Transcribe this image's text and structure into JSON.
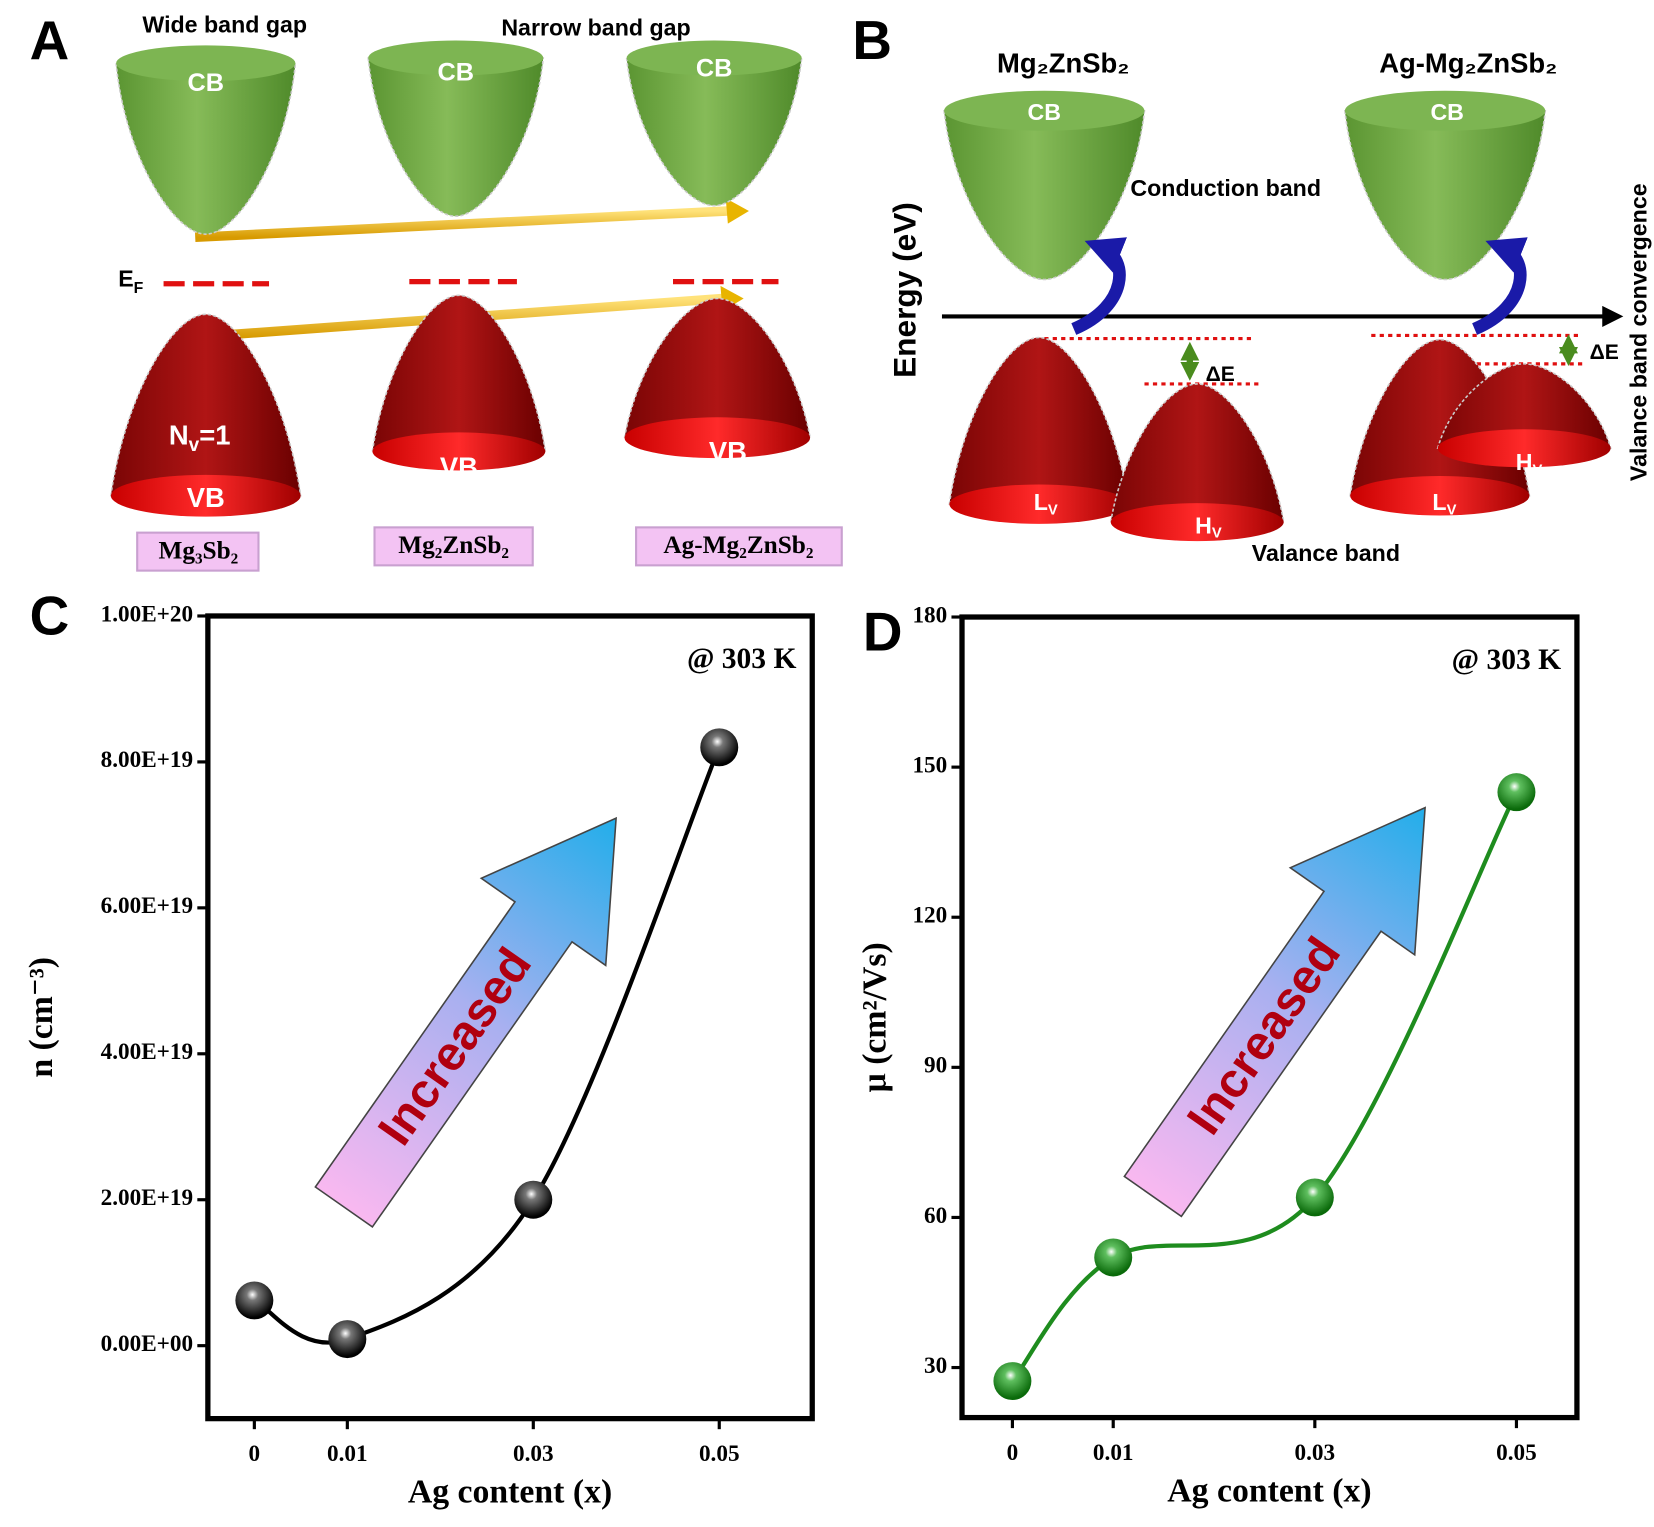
{
  "diagram_a": {
    "label": "A",
    "left_heading": "Wide band gap",
    "right_heading": "Narrow band gap",
    "bands": [
      {
        "cb": "CB",
        "vb": "VB",
        "material": "Mg₃Sb₂"
      },
      {
        "cb": "CB",
        "vb": "VB",
        "material": "Mg₂ZnSb₂"
      },
      {
        "cb": "CB",
        "vb": "VB",
        "material": "Ag-Mg₂ZnSb₂"
      }
    ],
    "fermi": {
      "main": "E",
      "sub": "F"
    },
    "valley": {
      "main": "N",
      "sub": "v",
      "rest": "=1"
    }
  },
  "diagram_b": {
    "label": "B",
    "materials": [
      "Mg₂ZnSb₂",
      "Ag-Mg₂ZnSb₂"
    ],
    "cb": [
      "CB",
      "CB"
    ],
    "conduction_band": "Conduction band",
    "valance_band": "Valance band",
    "y_axis": "Energy (eV)",
    "convergence": "Valance band convergence",
    "delta": [
      "ΔE",
      "ΔE"
    ],
    "light": [
      {
        "main": "L",
        "sub": "V"
      },
      {
        "main": "L",
        "sub": "V"
      }
    ],
    "heavy": [
      {
        "main": "H",
        "sub": "V"
      },
      {
        "main": "H",
        "sub": "V"
      }
    ]
  },
  "chart_data": [
    {
      "type": "line",
      "label": "C",
      "annotation": "@ 303 K",
      "arrow_text": "Increased",
      "xlabel": "Ag content (x)",
      "ylabel": "n (cm⁻³)",
      "x": [
        0,
        0.01,
        0.03,
        0.05
      ],
      "values": [
        6.2e+18,
        9e+17,
        2e+19,
        8.2e+19
      ],
      "color": "#000000",
      "xlim": [
        -0.005,
        0.06
      ],
      "ylim": [
        -1e+19,
        1e+20
      ],
      "xticks": [
        0,
        0.01,
        0.03,
        0.05
      ],
      "yticks": [
        {
          "value": 0,
          "label": "0.00E+00"
        },
        {
          "value": 2e+19,
          "label": "2.00E+19"
        },
        {
          "value": 4e+19,
          "label": "4.00E+19"
        },
        {
          "value": 6e+19,
          "label": "6.00E+19"
        },
        {
          "value": 8e+19,
          "label": "8.00E+19"
        },
        {
          "value": 1e+20,
          "label": "1.00E+20"
        }
      ]
    },
    {
      "type": "line",
      "label": "D",
      "annotation": "@ 303 K",
      "arrow_text": "Increased",
      "xlabel": "Ag content (x)",
      "ylabel": "μ (cm²/Vs)",
      "x": [
        0,
        0.01,
        0.03,
        0.05
      ],
      "values": [
        27.3,
        52,
        64,
        145
      ],
      "color": "#1e8c1e",
      "xlim": [
        -0.005,
        0.056
      ],
      "ylim": [
        20,
        180
      ],
      "xticks": [
        0,
        0.01,
        0.03,
        0.05
      ],
      "yticks": [
        30,
        60,
        90,
        120,
        150,
        180
      ]
    }
  ]
}
